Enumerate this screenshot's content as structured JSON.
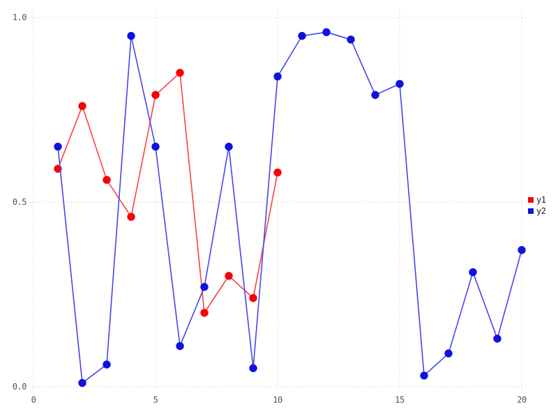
{
  "chart_data": {
    "type": "line",
    "title": "",
    "xlabel": "",
    "ylabel": "",
    "xlim": [
      0,
      20
    ],
    "ylim": [
      0.0,
      1.0
    ],
    "grid": "dotted",
    "grid_color": "#d2d2dc",
    "background_color": "#ffffff",
    "tick_label_color": "#585252",
    "legend_position": "right-outside",
    "x_ticks": [
      0,
      5,
      10,
      15,
      20
    ],
    "x_tick_labels": [
      "0",
      "5",
      "10",
      "15",
      "20"
    ],
    "y_ticks": [
      0.0,
      0.5,
      1.0
    ],
    "y_tick_labels": [
      "0.0",
      "0.5",
      "1.0"
    ],
    "series": [
      {
        "name": "y1",
        "marker": "circle",
        "marker_color": "#f50505",
        "line_color": "#fb4040",
        "x": [
          1,
          2,
          3,
          4,
          5,
          6,
          7,
          8,
          9,
          10
        ],
        "values": [
          0.59,
          0.76,
          0.56,
          0.46,
          0.79,
          0.85,
          0.2,
          0.3,
          0.24,
          0.58
        ]
      },
      {
        "name": "y2",
        "marker": "circle",
        "marker_color": "#1111dd",
        "line_color": "#4545ef",
        "x": [
          1,
          2,
          3,
          4,
          5,
          6,
          7,
          8,
          9,
          10,
          11,
          12,
          13,
          14,
          15,
          16,
          17,
          18,
          19,
          20
        ],
        "values": [
          0.65,
          0.01,
          0.06,
          0.95,
          0.65,
          0.11,
          0.27,
          0.65,
          0.05,
          0.84,
          0.95,
          0.96,
          0.94,
          0.79,
          0.82,
          0.03,
          0.09,
          0.31,
          0.13,
          0.37
        ]
      }
    ]
  }
}
